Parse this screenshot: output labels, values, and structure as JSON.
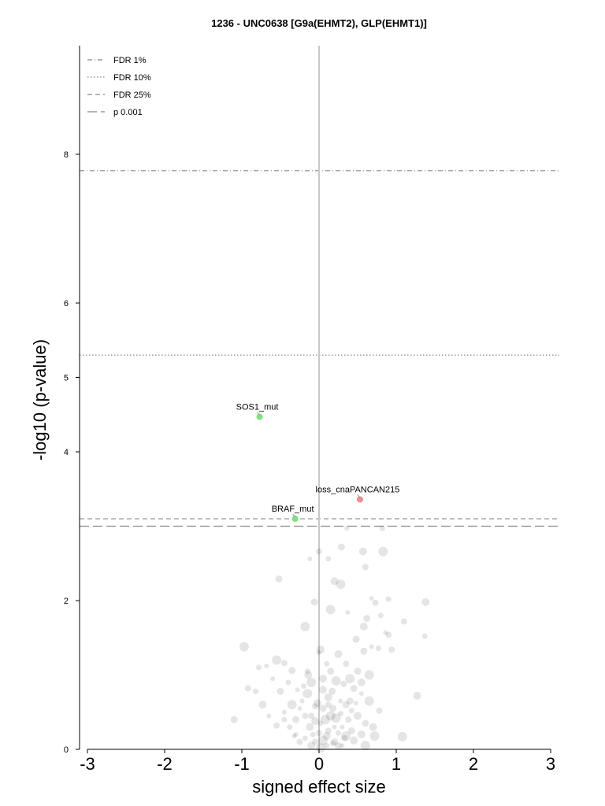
{
  "chart_data": {
    "type": "scatter",
    "title": "1236 - UNC0638 [G9a(EHMT2), GLP(EHMT1)]",
    "xlabel": "signed effect size",
    "ylabel": "-log10 (p-value)",
    "xlim": [
      -3.1,
      3.1
    ],
    "ylim": [
      0,
      9.5
    ],
    "xticks": [
      "-3",
      "-2",
      "-1",
      "0",
      "1",
      "2",
      "3"
    ],
    "yticks": [
      "0",
      "2",
      "4",
      "5",
      "6",
      "8"
    ],
    "grid": false,
    "legend_position": "top-left",
    "colors": {
      "sensitivity": "#7fe07f",
      "resistance": "#f28b8b",
      "background_points": "#000000",
      "threshold_lines": "#888888",
      "zero_line": "#c8c8c8"
    },
    "thresholds": [
      {
        "label": "FDR 1%",
        "y": 7.78,
        "style": "dashdot"
      },
      {
        "label": "FDR 10%",
        "y": 5.3,
        "style": "dotted"
      },
      {
        "label": "FDR 25%",
        "y": 3.1,
        "style": "dashed"
      },
      {
        "label": "p 0.001",
        "y": 3.0,
        "style": "longdash"
      }
    ],
    "highlighted": [
      {
        "label": "SOS1_mut",
        "x": -0.77,
        "y": 4.47,
        "color": "#7fe07f"
      },
      {
        "label": "loss_cnaPANCAN215",
        "x": 0.53,
        "y": 3.36,
        "color": "#f28b8b"
      },
      {
        "label": "BRAF_mut",
        "x": -0.31,
        "y": 3.1,
        "color": "#7fe07f"
      }
    ],
    "points": [
      [
        0.36,
        2.97
      ],
      [
        0.82,
        2.97
      ],
      [
        0,
        2.66
      ],
      [
        0.29,
        2.72
      ],
      [
        0.57,
        2.66
      ],
      [
        0.83,
        2.66
      ],
      [
        -0.12,
        2.56
      ],
      [
        0.12,
        2.56
      ],
      [
        0.6,
        2.45
      ],
      [
        -0.52,
        2.29
      ],
      [
        0.2,
        2.26
      ],
      [
        0.28,
        2.22
      ],
      [
        0.68,
        2.03
      ],
      [
        0.9,
        2.02
      ],
      [
        0.73,
        1.97
      ],
      [
        -0.06,
        1.98
      ],
      [
        1.38,
        1.98
      ],
      [
        0.15,
        1.88
      ],
      [
        0.37,
        1.84
      ],
      [
        0.8,
        1.8
      ],
      [
        1.1,
        1.72
      ],
      [
        0.62,
        1.76
      ],
      [
        0.58,
        1.65
      ],
      [
        -0.18,
        1.65
      ],
      [
        0.86,
        1.57
      ],
      [
        1.37,
        1.52
      ],
      [
        0.9,
        1.54
      ],
      [
        0.48,
        1.48
      ],
      [
        0.02,
        1.34
      ],
      [
        -0.97,
        1.38
      ],
      [
        0.68,
        1.38
      ],
      [
        0.77,
        1.36
      ],
      [
        0.94,
        1.34
      ],
      [
        0.58,
        1.32
      ],
      [
        0.25,
        1.28
      ],
      [
        -0.55,
        1.2
      ],
      [
        -0.68,
        1.12
      ],
      [
        -0.78,
        1.1
      ],
      [
        -0.45,
        1.16
      ],
      [
        -0.35,
        1.06
      ],
      [
        -0.14,
        1.0
      ],
      [
        -0.1,
        0.9
      ],
      [
        -0.6,
        0.95
      ],
      [
        -0.82,
        0.78
      ],
      [
        -0.92,
        0.82
      ],
      [
        -0.5,
        0.78
      ],
      [
        -0.73,
        0.6
      ],
      [
        -0.35,
        0.6
      ],
      [
        -0.65,
        0.45
      ],
      [
        -0.45,
        0.4
      ],
      [
        -0.55,
        0.32
      ],
      [
        -1.1,
        0.4
      ],
      [
        1.27,
        0.72
      ],
      [
        0.65,
        0.65
      ],
      [
        0.55,
        0.75
      ],
      [
        0.42,
        0.52
      ],
      [
        0.78,
        0.52
      ],
      [
        0.6,
        0.35
      ],
      [
        0.7,
        0.3
      ],
      [
        0.35,
        0.18
      ],
      [
        -0.3,
        0.2
      ],
      [
        -0.18,
        0.15
      ],
      [
        -0.1,
        0.45
      ],
      [
        0.05,
        0.55
      ],
      [
        0.12,
        0.7
      ],
      [
        0.22,
        0.42
      ],
      [
        0.3,
        0.3
      ],
      [
        0.1,
        0.05
      ],
      [
        -0.05,
        0.1
      ],
      [
        0.2,
        0.1
      ],
      [
        0.45,
        0.12
      ],
      [
        1.08,
        0.17
      ],
      [
        -0.25,
        0.55
      ],
      [
        -0.2,
        0.85
      ],
      [
        0.32,
        0.88
      ],
      [
        0.15,
        1.05
      ],
      [
        0.05,
        0.8
      ],
      [
        0.4,
        0.95
      ],
      [
        0.48,
        0.62
      ],
      [
        -0.4,
        0.9
      ],
      [
        0.12,
        0.25
      ],
      [
        0.25,
        0.05
      ],
      [
        -0.12,
        0.3
      ],
      [
        0.6,
        0.05
      ],
      [
        0.28,
        0.65
      ],
      [
        0.02,
        0.35
      ],
      [
        0.38,
        0.4
      ],
      [
        0.18,
        0.55
      ],
      [
        -0.02,
        0.62
      ],
      [
        -0.15,
        0.75
      ],
      [
        0.0,
        1.3
      ],
      [
        -0.15,
        1.05
      ],
      [
        -0.05,
        0.58
      ],
      [
        0.17,
        0.78
      ],
      [
        0.1,
        0.18
      ],
      [
        0.05,
        0.12
      ],
      [
        -0.22,
        0.65
      ],
      [
        0.25,
        0.22
      ],
      [
        0.33,
        0.15
      ],
      [
        -0.3,
        0.4
      ],
      [
        0.5,
        0.45
      ],
      [
        0.15,
        0.45
      ],
      [
        0.2,
        0.3
      ],
      [
        -0.08,
        0.2
      ],
      [
        -0.25,
        0.1
      ],
      [
        0.42,
        0.25
      ],
      [
        0.05,
        0.95
      ],
      [
        0.22,
        0.92
      ],
      [
        -0.32,
        0.18
      ],
      [
        0.28,
        0.48
      ],
      [
        0.12,
        0.6
      ],
      [
        0.4,
        0.65
      ],
      [
        -0.05,
        0.38
      ],
      [
        0.08,
        0.4
      ],
      [
        0.3,
        0.05
      ],
      [
        0.18,
        0.08
      ],
      [
        -0.18,
        0.45
      ],
      [
        0.45,
        0.82
      ],
      [
        0.55,
        0.9
      ],
      [
        0.65,
        1.0
      ],
      [
        -0.45,
        0.5
      ],
      [
        -0.38,
        0.3
      ],
      [
        0.0,
        0.22
      ],
      [
        0.35,
        0.6
      ],
      [
        0.55,
        0.2
      ],
      [
        0.72,
        0.18
      ],
      [
        -0.28,
        0.8
      ],
      [
        0.1,
        1.15
      ],
      [
        0.35,
        1.15
      ],
      [
        0.5,
        1.05
      ],
      [
        -0.1,
        0.05
      ],
      [
        0.02,
        0.02
      ]
    ]
  }
}
